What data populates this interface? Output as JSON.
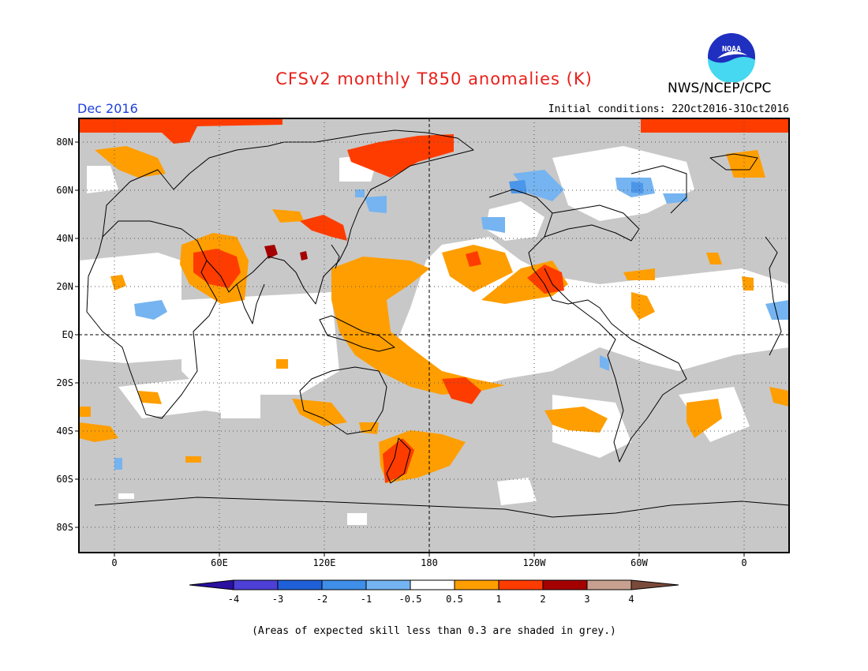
{
  "header": {
    "title": "CFSv2 monthly T850 anomalies (K)",
    "agency": "NWS/NCEP/CPC",
    "logo_text": "NOAA",
    "month": "Dec 2016",
    "initial_conditions": "Initial conditions: 22Oct2016-31Oct2016"
  },
  "map": {
    "lat_labels": [
      "80N",
      "60N",
      "40N",
      "20N",
      "EQ",
      "20S",
      "40S",
      "60S",
      "80S"
    ],
    "lon_labels": [
      "0",
      "60E",
      "120E",
      "180",
      "120W",
      "60W",
      "0"
    ],
    "colors": {
      "grey_low_skill": "#c8c8c8",
      "neutral": "#ffffff",
      "warm_0_5": "#ff9e00",
      "warm_1": "#ff3c00",
      "warm_2": "#a50000",
      "cool_0_5": "#75b4f0",
      "cool_1": "#4b96ea"
    }
  },
  "legend": {
    "colors": [
      "#2a0fa0",
      "#4c40d8",
      "#1f60d8",
      "#3f8ee8",
      "#74b4f2",
      "#ffffff",
      "#ff9e00",
      "#ff3c00",
      "#a50000",
      "#c8a090",
      "#7a4a3a"
    ],
    "labels": [
      "-4",
      "-3",
      "-2",
      "-1",
      "-0.5",
      "0.5",
      "1",
      "2",
      "3",
      "4"
    ]
  },
  "footer": {
    "note": "(Areas of expected skill less than 0.3 are shaded in grey.)"
  }
}
